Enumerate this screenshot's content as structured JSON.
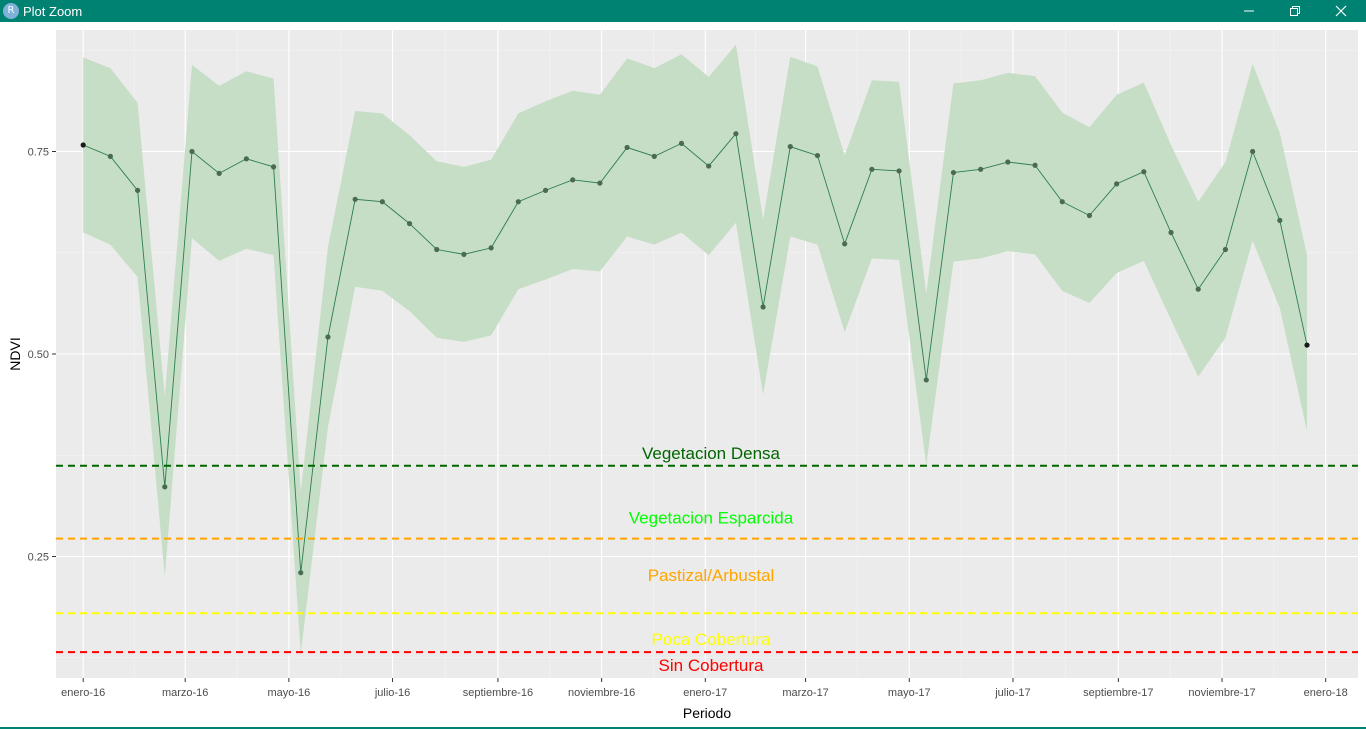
{
  "window": {
    "title": "Plot Zoom",
    "icon": "r-logo-icon",
    "controls": [
      "minimize-icon",
      "maximize-icon",
      "close-icon"
    ]
  },
  "colors": {
    "titlebar": "#008272",
    "panel": "#ebebeb",
    "ribbon": "#c5dec5",
    "line": "#2e7d4f"
  },
  "chart_data": {
    "type": "line",
    "xlabel": "Periodo",
    "ylabel": "NDVI",
    "ylim": [
      0.1,
      0.9
    ],
    "y_ticks": [
      0.25,
      0.5,
      0.75
    ],
    "y_tick_labels": [
      "0.25",
      "0.50",
      "0.75"
    ],
    "x_ticks": [
      "2016-01-01",
      "2016-03-01",
      "2016-05-01",
      "2016-07-01",
      "2016-09-01",
      "2016-11-01",
      "2017-01-01",
      "2017-03-01",
      "2017-05-01",
      "2017-07-01",
      "2017-09-01",
      "2017-11-01",
      "2018-01-01"
    ],
    "x_tick_labels": [
      "enero-16",
      "marzo-16",
      "mayo-16",
      "julio-16",
      "septiembre-16",
      "noviembre-16",
      "enero-17",
      "marzo-17",
      "mayo-17",
      "julio-17",
      "septiembre-17",
      "noviembre-17",
      "enero-18"
    ],
    "xlim": [
      "2015-12-16",
      "2018-01-20"
    ],
    "grid": true,
    "series": [
      {
        "x": [
          "2016-01-01",
          "2016-01-17",
          "2016-02-02",
          "2016-02-18",
          "2016-03-05",
          "2016-03-21",
          "2016-04-06",
          "2016-04-22",
          "2016-05-08",
          "2016-05-24",
          "2016-06-09",
          "2016-06-25",
          "2016-07-11",
          "2016-07-27",
          "2016-08-12",
          "2016-08-28",
          "2016-09-13",
          "2016-09-29",
          "2016-10-15",
          "2016-10-31",
          "2016-11-16",
          "2016-12-02",
          "2016-12-18",
          "2017-01-03",
          "2017-01-19",
          "2017-02-04",
          "2017-02-20",
          "2017-03-08",
          "2017-03-24",
          "2017-04-09",
          "2017-04-25",
          "2017-05-11",
          "2017-05-27",
          "2017-06-12",
          "2017-06-28",
          "2017-07-14",
          "2017-07-30",
          "2017-08-15",
          "2017-08-31",
          "2017-09-16",
          "2017-10-02",
          "2017-10-18",
          "2017-11-03",
          "2017-11-19",
          "2017-12-05",
          "2017-12-21"
        ],
        "y": [
          0.758,
          0.744,
          0.702,
          0.336,
          0.75,
          0.723,
          0.741,
          0.731,
          0.23,
          0.521,
          0.691,
          0.688,
          0.661,
          0.629,
          0.623,
          0.631,
          0.688,
          0.702,
          0.715,
          0.711,
          0.755,
          0.744,
          0.76,
          0.732,
          0.772,
          0.558,
          0.756,
          0.745,
          0.636,
          0.728,
          0.726,
          0.468,
          0.724,
          0.728,
          0.737,
          0.733,
          0.688,
          0.671,
          0.71,
          0.725,
          0.65,
          0.58,
          0.629,
          0.75,
          0.665,
          0.511
        ],
        "ymin": [
          0.65,
          0.635,
          0.595,
          0.225,
          0.643,
          0.615,
          0.63,
          0.622,
          0.13,
          0.41,
          0.583,
          0.578,
          0.553,
          0.52,
          0.515,
          0.523,
          0.58,
          0.592,
          0.605,
          0.602,
          0.645,
          0.635,
          0.65,
          0.622,
          0.662,
          0.45,
          0.645,
          0.635,
          0.527,
          0.618,
          0.616,
          0.363,
          0.614,
          0.618,
          0.627,
          0.623,
          0.578,
          0.563,
          0.6,
          0.615,
          0.542,
          0.472,
          0.52,
          0.64,
          0.557,
          0.405
        ],
        "ymax": [
          0.866,
          0.853,
          0.81,
          0.447,
          0.857,
          0.831,
          0.849,
          0.84,
          0.33,
          0.632,
          0.8,
          0.797,
          0.77,
          0.738,
          0.731,
          0.74,
          0.797,
          0.812,
          0.825,
          0.82,
          0.865,
          0.853,
          0.87,
          0.842,
          0.882,
          0.666,
          0.867,
          0.855,
          0.745,
          0.838,
          0.836,
          0.575,
          0.834,
          0.838,
          0.847,
          0.843,
          0.798,
          0.78,
          0.82,
          0.835,
          0.758,
          0.688,
          0.737,
          0.858,
          0.773,
          0.622
        ]
      }
    ],
    "reference_lines": [
      {
        "y": 0.362,
        "label": "Vegetacion Densa",
        "color": "#006400",
        "label_y": 0.378
      },
      {
        "y": 0.272,
        "label": "Vegetacion Esparcida",
        "color": "#ffa500",
        "label_color": "#00ff00",
        "label_y": 0.298
      },
      {
        "y": 0.18,
        "label": "Pastizal/Arbustal",
        "color": "#ffff00",
        "label_color": "#ffa500",
        "label_y": 0.227
      },
      {
        "y": 0.132,
        "label": "Poca Cobertura",
        "color": "#ff0000",
        "label_color": "#ffff00",
        "label_y": 0.148
      },
      {
        "label": "Sin Cobertura",
        "label_color": "#ff0000",
        "label_y": 0.116
      }
    ]
  }
}
